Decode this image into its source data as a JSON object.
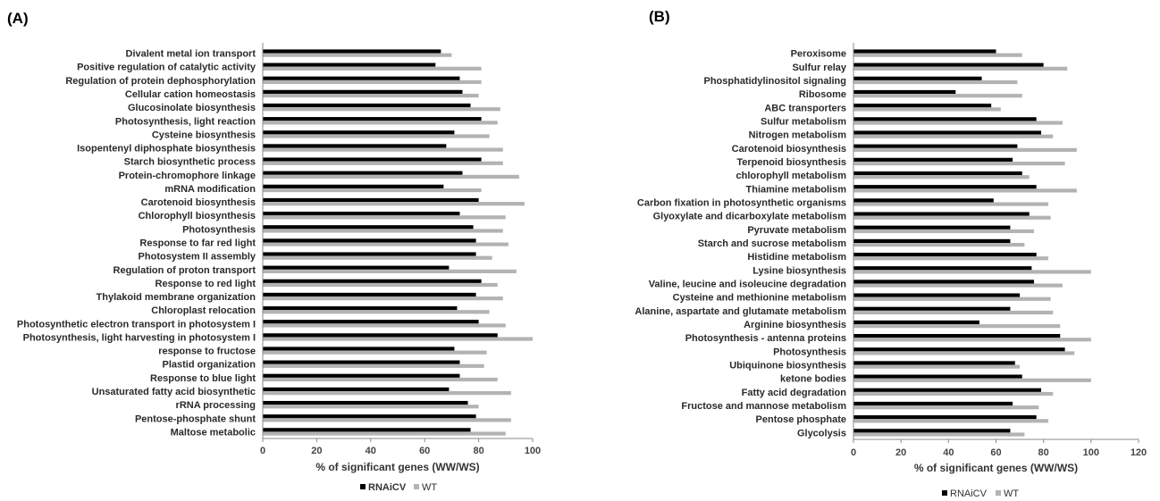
{
  "chart_data": [
    {
      "panel_label": "(A)",
      "type": "bar",
      "orientation": "horizontal",
      "xlabel": "% of significant genes (WW/WS)",
      "xlim": [
        0,
        100
      ],
      "xticks": [
        0,
        20,
        40,
        60,
        80,
        100
      ],
      "grid": false,
      "legend_position": "bottom",
      "categories": [
        "Divalent metal ion transport",
        "Positive regulation of catalytic activity",
        "Regulation of protein dephosphorylation",
        "Cellular cation homeostasis",
        "Glucosinolate biosynthesis",
        "Photosynthesis, light reaction",
        "Cysteine biosynthesis",
        "Isopentenyl diphosphate biosynthesis",
        "Starch biosynthetic process",
        "Protein-chromophore linkage",
        "mRNA modification",
        "Carotenoid biosynthesis",
        "Chlorophyll biosynthesis",
        "Photosynthesis",
        "Response to far red light",
        "Photosystem II assembly",
        "Regulation of proton transport",
        "Response to red light",
        "Thylakoid membrane organization",
        "Chloroplast relocation",
        "Photosynthetic electron transport in photosystem I",
        "Photosynthesis, light harvesting in photosystem I",
        "response to fructose",
        "Plastid organization",
        "Response to blue light",
        "Unsaturated fatty acid biosynthetic",
        "rRNA processing",
        "Pentose-phosphate shunt",
        "Maltose metabolic"
      ],
      "series": [
        {
          "name": "RNAiCV",
          "color": "#000000",
          "values": [
            66,
            64,
            73,
            74,
            77,
            81,
            71,
            68,
            81,
            74,
            67,
            80,
            73,
            78,
            79,
            79,
            69,
            81,
            79,
            72,
            80,
            87,
            71,
            73,
            73,
            69,
            76,
            79,
            77
          ]
        },
        {
          "name": "WT",
          "color": "#b3b3b3",
          "values": [
            70,
            81,
            81,
            80,
            88,
            87,
            84,
            89,
            89,
            95,
            81,
            97,
            90,
            89,
            91,
            85,
            94,
            87,
            89,
            84,
            90,
            100,
            83,
            82,
            87,
            92,
            80,
            92,
            90
          ]
        }
      ]
    },
    {
      "panel_label": "(B)",
      "type": "bar",
      "orientation": "horizontal",
      "xlabel": "% of significant genes (WW/WS)",
      "xlim": [
        0,
        120
      ],
      "xticks": [
        0,
        20,
        40,
        60,
        80,
        100,
        120
      ],
      "grid": false,
      "legend_position": "bottom",
      "categories": [
        "Peroxisome",
        "Sulfur relay",
        "Phosphatidylinositol signaling",
        "Ribosome",
        "ABC transporters",
        "Sulfur metabolism",
        "Nitrogen metabolism",
        "Carotenoid biosynthesis",
        "Terpenoid  biosynthesis",
        "chlorophyll metabolism",
        "Thiamine metabolism",
        "Carbon fixation in photosynthetic organisms",
        "Glyoxylate and dicarboxylate metabolism",
        "Pyruvate metabolism",
        "Starch and sucrose metabolism",
        "Histidine metabolism",
        "Lysine biosynthesis",
        "Valine, leucine and isoleucine degradation",
        "Cysteine and methionine metabolism",
        "Alanine, aspartate and glutamate metabolism",
        "Arginine biosynthesis",
        "Photosynthesis - antenna proteins",
        "Photosynthesis",
        "Ubiquinone  biosynthesis",
        "ketone bodies",
        "Fatty acid degradation",
        "Fructose and mannose metabolism",
        "Pentose phosphate",
        "Glycolysis"
      ],
      "series": [
        {
          "name": "RNAiCV",
          "color": "#000000",
          "values": [
            60,
            80,
            54,
            43,
            58,
            77,
            79,
            69,
            67,
            71,
            77,
            59,
            74,
            66,
            66,
            77,
            75,
            76,
            70,
            66,
            53,
            87,
            89,
            68,
            71,
            79,
            67,
            77,
            66
          ]
        },
        {
          "name": "WT",
          "color": "#b3b3b3",
          "values": [
            71,
            90,
            69,
            71,
            62,
            88,
            84,
            94,
            89,
            74,
            94,
            82,
            83,
            76,
            72,
            82,
            100,
            88,
            83,
            84,
            87,
            100,
            93,
            70,
            100,
            84,
            78,
            82,
            72
          ]
        }
      ]
    }
  ]
}
